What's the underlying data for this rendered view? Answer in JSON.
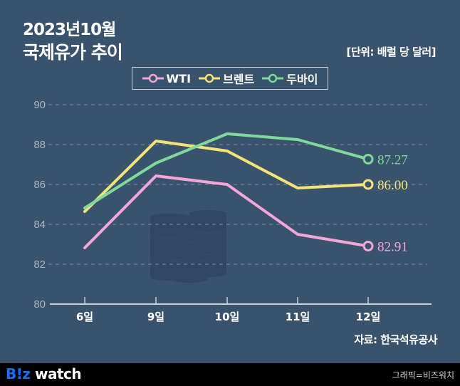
{
  "header": {
    "title_line1": "2023년10월",
    "title_line2": "국제유가 추이",
    "unit": "[단위: 배럴 당 달러]"
  },
  "legend": [
    {
      "label": "WTI",
      "color": "#f4a6d7"
    },
    {
      "label": "브렌트",
      "color": "#f5e37a"
    },
    {
      "label": "두바이",
      "color": "#7fd99a"
    }
  ],
  "source": "자료: 한국석유공사",
  "footer": {
    "logo_biz": "B!z",
    "logo_watch": "watch",
    "credit": "그래픽=비즈워치"
  },
  "colors": {
    "background": "#3a536c",
    "wti": "#f4a6d7",
    "brent": "#f5e37a",
    "dubai": "#7fd99a",
    "grid": "#7c8fa5",
    "axis": "#c8d0da"
  },
  "chart_data": {
    "type": "line",
    "title": "2023년10월 국제유가 추이",
    "xlabel": "",
    "ylabel": "배럴 당 달러",
    "categories": [
      "6일",
      "9일",
      "10일",
      "11일",
      "12일"
    ],
    "yticks": [
      80,
      82,
      84,
      86,
      88,
      90
    ],
    "ylim": [
      80,
      90
    ],
    "grid": true,
    "legend_position": "top",
    "series": [
      {
        "name": "WTI",
        "color": "#f4a6d7",
        "values": [
          82.82,
          86.43,
          86.0,
          83.5,
          82.91
        ],
        "end_label": "82.91"
      },
      {
        "name": "브렌트",
        "color": "#f5e37a",
        "values": [
          84.64,
          88.18,
          87.68,
          85.82,
          86.0
        ],
        "end_label": "86.00"
      },
      {
        "name": "두바이",
        "color": "#7fd99a",
        "values": [
          84.82,
          87.07,
          88.54,
          88.25,
          87.27
        ],
        "end_label": "87.27"
      }
    ],
    "source": "자료: 한국석유공사"
  }
}
